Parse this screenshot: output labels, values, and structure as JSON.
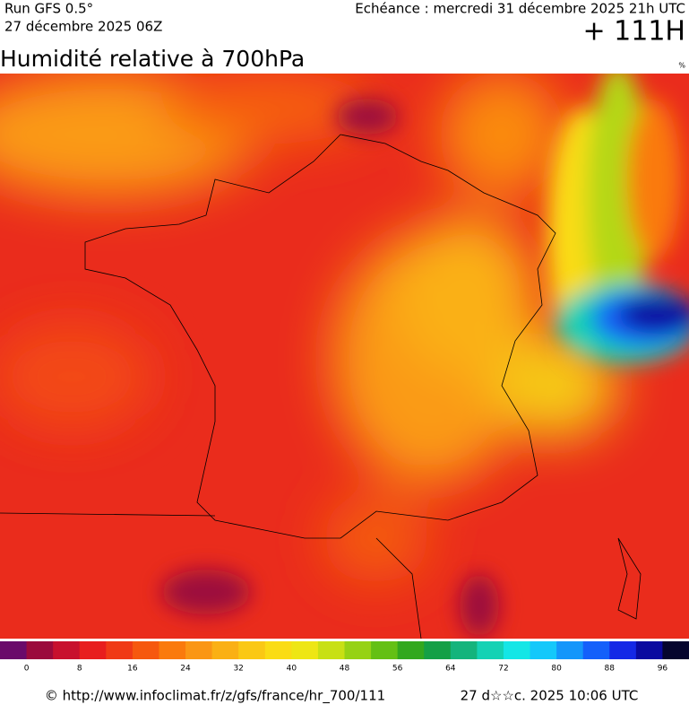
{
  "header": {
    "run": "Run GFS 0.5°",
    "run_date": "27 décembre 2025 06Z",
    "forecast": "Echéance : mercredi 31 décembre 2025 21h UTC",
    "lead": "+ 111H",
    "title": "Humidité relative à 700hPa",
    "unit": "%"
  },
  "colorbar": {
    "labels": [
      "0",
      "8",
      "16",
      "24",
      "32",
      "40",
      "48",
      "56",
      "64",
      "72",
      "80",
      "88",
      "96"
    ],
    "colors": [
      "#6a0a6a",
      "#9b0a3c",
      "#c8102e",
      "#e81e1e",
      "#f03a16",
      "#f6580e",
      "#fa7a0c",
      "#fa9614",
      "#fab014",
      "#fac814",
      "#fadc14",
      "#eee614",
      "#c8e014",
      "#96d214",
      "#64c014",
      "#32a81e",
      "#14a046",
      "#14b47c",
      "#14d2b4",
      "#14e6e6",
      "#14c8fa",
      "#1496fa",
      "#1460fa",
      "#1428e6",
      "#0a0aa0",
      "#05052e"
    ]
  },
  "footer": {
    "source": "© http://www.infoclimat.fr/z/gfs/france/hr_700/111",
    "generated": "27 d☆☆c. 2025 10:06 UTC"
  }
}
